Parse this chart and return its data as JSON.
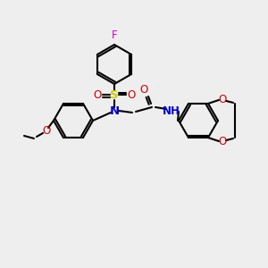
{
  "bg_color": "#eeeeee",
  "bond_color": "#000000",
  "bond_width": 1.5,
  "atom_colors": {
    "F": "#cc00cc",
    "S": "#cccc00",
    "O": "#cc0000",
    "N": "#0000cc",
    "H": "#000000"
  },
  "font_size": 8.5
}
